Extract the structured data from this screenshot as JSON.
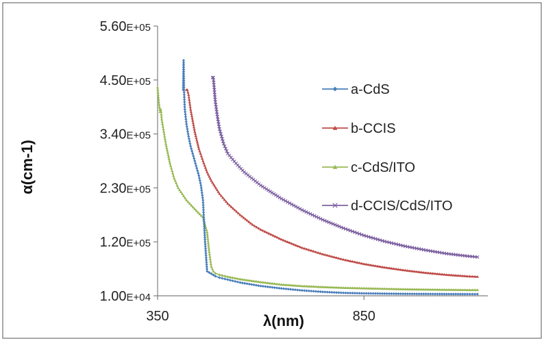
{
  "chart_data": {
    "type": "line",
    "title": "",
    "xlabel": "λ(nm)",
    "ylabel": "α(cm-1)",
    "xlim": [
      350,
      1150
    ],
    "ylim": [
      10000,
      560000
    ],
    "x_ticks": [
      {
        "value": 350,
        "label": "350"
      },
      {
        "value": 850,
        "label": "850"
      }
    ],
    "y_ticks": [
      {
        "value": 10000,
        "label": "1.00E+04"
      },
      {
        "value": 120000,
        "label": "1.20E+05"
      },
      {
        "value": 230000,
        "label": "2.30E+05"
      },
      {
        "value": 340000,
        "label": "3.40E+05"
      },
      {
        "value": 450000,
        "label": "4.50E+05"
      },
      {
        "value": 560000,
        "label": "5.60E+05"
      }
    ],
    "grid": false,
    "legend_position": "right",
    "series": [
      {
        "name": "a-CdS",
        "color": "#4a7ebb",
        "marker": "diamond",
        "x": [
          412,
          413,
          414,
          416,
          420,
          425,
          430,
          435,
          440,
          445,
          450,
          455,
          460,
          462,
          465,
          470,
          480,
          490,
          500,
          520,
          550,
          600,
          650,
          700,
          750,
          800,
          850,
          900,
          950,
          1000,
          1050,
          1100,
          1125
        ],
        "y": [
          430000,
          490000,
          430000,
          390000,
          360000,
          335000,
          315000,
          300000,
          285000,
          270000,
          255000,
          235000,
          205000,
          170000,
          120000,
          60000,
          55000,
          50000,
          47000,
          43000,
          37000,
          30000,
          25000,
          21000,
          18000,
          16000,
          15000,
          14500,
          14000,
          13800,
          13600,
          13500,
          13500
        ]
      },
      {
        "name": "b-CCIS",
        "color": "#be4b48",
        "marker": "triangle",
        "x": [
          420,
          422,
          425,
          430,
          440,
          450,
          460,
          470,
          480,
          500,
          520,
          550,
          580,
          600,
          650,
          700,
          750,
          800,
          850,
          900,
          950,
          1000,
          1050,
          1100,
          1125
        ],
        "y": [
          430000,
          430000,
          420000,
          390000,
          345000,
          310000,
          285000,
          262000,
          245000,
          218000,
          198000,
          175000,
          155000,
          145000,
          125000,
          108000,
          95000,
          84000,
          75000,
          68000,
          62000,
          57000,
          53000,
          50000,
          49000
        ]
      },
      {
        "name": "c-CdS/ITO",
        "color": "#98b954",
        "marker": "triangle",
        "x": [
          350,
          353,
          356,
          358,
          360,
          362,
          365,
          370,
          380,
          390,
          400,
          420,
          440,
          460,
          470,
          475,
          480,
          485,
          490,
          500,
          520,
          550,
          600,
          650,
          700,
          750,
          800,
          850,
          900,
          950,
          1000,
          1050,
          1100,
          1125
        ],
        "y": [
          435000,
          405000,
          385000,
          390000,
          370000,
          360000,
          345000,
          320000,
          280000,
          250000,
          230000,
          205000,
          187000,
          170000,
          140000,
          100000,
          70000,
          60000,
          56000,
          53000,
          49000,
          44000,
          38000,
          33000,
          30000,
          28000,
          26500,
          25500,
          24500,
          23500,
          23000,
          22500,
          22000,
          22000
        ]
      },
      {
        "name": "d-CCIS/CdS/ITO",
        "color": "#7d60a0",
        "marker": "x",
        "x": [
          483,
          485,
          487,
          490,
          495,
          500,
          510,
          520,
          540,
          560,
          600,
          650,
          700,
          750,
          800,
          850,
          900,
          950,
          1000,
          1050,
          1100,
          1125
        ],
        "y": [
          455000,
          455000,
          435000,
          405000,
          375000,
          350000,
          320000,
          300000,
          280000,
          262000,
          235000,
          208000,
          185000,
          165000,
          148000,
          133000,
          121000,
          111000,
          103000,
          96000,
          91000,
          89000
        ]
      }
    ]
  }
}
